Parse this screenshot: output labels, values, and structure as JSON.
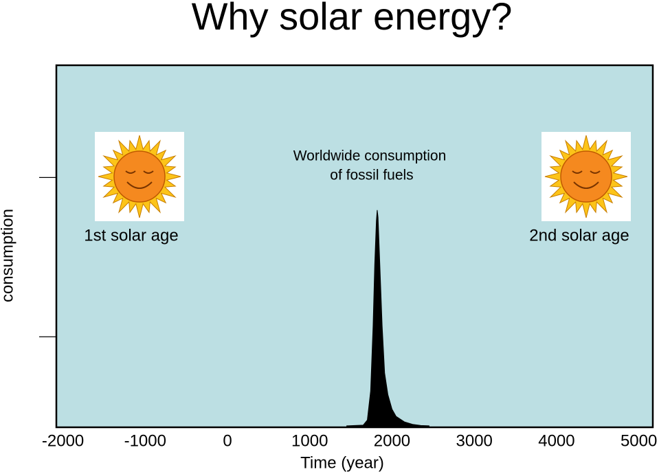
{
  "chart_data": {
    "type": "area",
    "title": "Why solar energy?",
    "x_label": "Time (year)",
    "y_label": "consumption",
    "annotation": [
      "Worldwide consumption",
      "of fossil fuels"
    ],
    "left_label": "1st solar age",
    "right_label": "2nd solar age",
    "x": [
      1450,
      1550,
      1650,
      1700,
      1740,
      1770,
      1790,
      1810,
      1820,
      1830,
      1850,
      1880,
      1910,
      1950,
      2000,
      2050,
      2150,
      2250,
      2350,
      2450
    ],
    "values": [
      0.4,
      0.5,
      0.6,
      2,
      10,
      28,
      45,
      57,
      60,
      58,
      46,
      28,
      15,
      9,
      5,
      3,
      1.5,
      0.8,
      0.5,
      0.4
    ],
    "color": "#000000",
    "background": "#bcdfe3",
    "xlim": [
      -2080,
      5170
    ],
    "xticks": [
      -2000,
      -1000,
      0,
      1000,
      2000,
      3000,
      4000,
      5000
    ],
    "ylim": [
      0,
      100
    ],
    "yticks": [
      25,
      69
    ]
  }
}
